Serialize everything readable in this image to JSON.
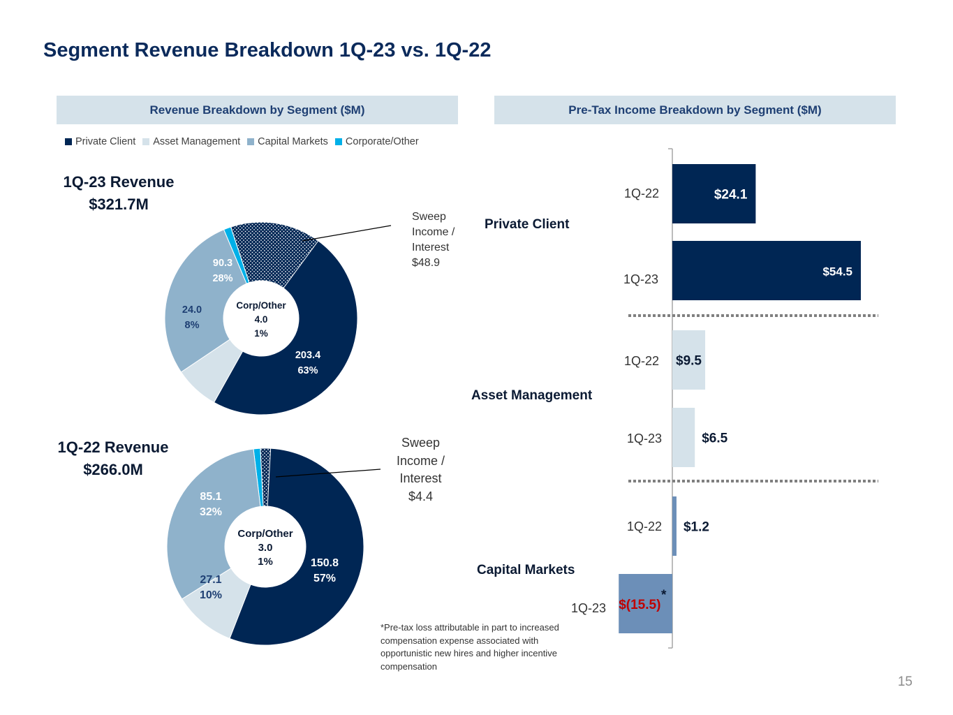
{
  "title": "Segment Revenue Breakdown 1Q-23 vs. 1Q-22",
  "page_number": "15",
  "colors": {
    "private_client": "#002654",
    "asset_management": "#d5e2ea",
    "capital_markets": "#8fb2cb",
    "corporate_other": "#00b0e8",
    "bar_capital_markets": "#6c8fb8",
    "negative": "#c00000"
  },
  "left_panel": {
    "header": "Revenue Breakdown by Segment ($M)",
    "legend": [
      "Private Client",
      "Asset Management",
      "Capital Markets",
      "Corporate/Other"
    ],
    "q123": {
      "title_line1": "1Q-23 Revenue",
      "title_line2": "$321.7M"
    },
    "q122": {
      "title_line1": "1Q-22 Revenue",
      "title_line2": "$266.0M"
    },
    "callout_23": [
      "Sweep",
      "Income /",
      "Interest",
      "$48.9"
    ],
    "callout_22": [
      "Sweep",
      "Income /",
      "Interest",
      "$4.4"
    ]
  },
  "right_panel": {
    "header": "Pre-Tax Income Breakdown by Segment ($M)",
    "segments": [
      "Private Client",
      "Asset Management",
      "Capital Markets"
    ],
    "asterisk": "*",
    "footnote": "*Pre-tax loss attributable in part to increased compensation expense associated with opportunistic new hires and higher incentive compensation"
  },
  "chart_data": [
    {
      "type": "pie",
      "title": "1Q-23 Revenue $321.7M",
      "center_label": [
        "Corp/Other",
        "4.0",
        "1%"
      ],
      "slices": [
        {
          "name": "Private Client",
          "value": 203.4,
          "pct": "63%",
          "value_label": "203.4"
        },
        {
          "name": "Asset Management",
          "value": 24.0,
          "pct": "8%",
          "value_label": "24.0"
        },
        {
          "name": "Capital Markets",
          "value": 90.3,
          "pct": "28%",
          "value_label": "90.3"
        },
        {
          "name": "Corporate/Other",
          "value": 4.0,
          "pct": "1%",
          "value_label": "4.0"
        }
      ],
      "sweep_income_interest": 48.9
    },
    {
      "type": "pie",
      "title": "1Q-22 Revenue $266.0M",
      "center_label": [
        "Corp/Other",
        "3.0",
        "1%"
      ],
      "slices": [
        {
          "name": "Private Client",
          "value": 150.8,
          "pct": "57%",
          "value_label": "150.8"
        },
        {
          "name": "Asset Management",
          "value": 27.1,
          "pct": "10%",
          "value_label": "27.1"
        },
        {
          "name": "Capital Markets",
          "value": 85.1,
          "pct": "32%",
          "value_label": "85.1"
        },
        {
          "name": "Corporate/Other",
          "value": 3.0,
          "pct": "1%",
          "value_label": "3.0"
        }
      ],
      "sweep_income_interest": 4.4
    },
    {
      "type": "bar",
      "orientation": "horizontal",
      "title": "Pre-Tax Income Breakdown by Segment ($M)",
      "bars": [
        {
          "segment": "Private Client",
          "period": "1Q-22",
          "value": 24.1,
          "label": "$24.1"
        },
        {
          "segment": "Private Client",
          "period": "1Q-23",
          "value": 54.5,
          "label": "$54.5"
        },
        {
          "segment": "Asset Management",
          "period": "1Q-22",
          "value": 9.5,
          "label": "$9.5"
        },
        {
          "segment": "Asset Management",
          "period": "1Q-23",
          "value": 6.5,
          "label": "$6.5"
        },
        {
          "segment": "Capital Markets",
          "period": "1Q-22",
          "value": 1.2,
          "label": "$1.2"
        },
        {
          "segment": "Capital Markets",
          "period": "1Q-23",
          "value": -15.5,
          "label": "$(15.5)"
        }
      ]
    }
  ]
}
